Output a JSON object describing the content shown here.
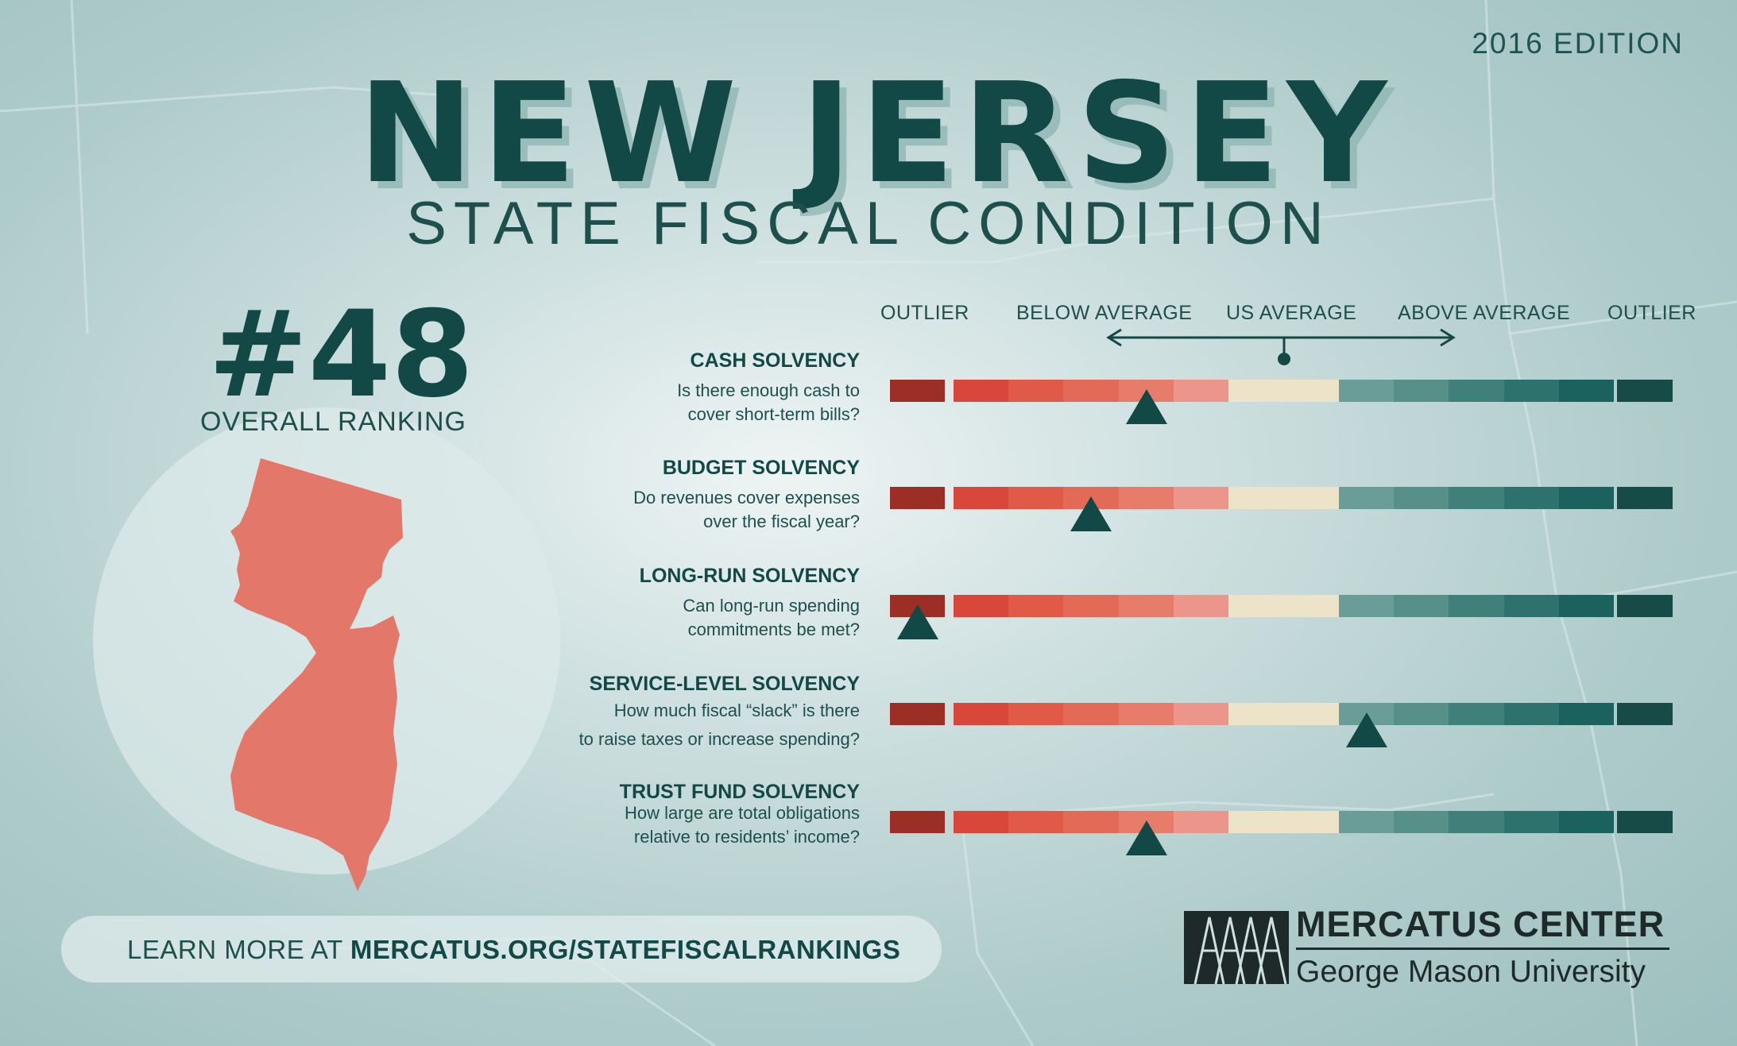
{
  "edition": "2016 EDITION",
  "title": "NEW JERSEY",
  "subtitle": "STATE FISCAL CONDITION",
  "ranking": {
    "value": "#48",
    "label": "OVERALL RANKING"
  },
  "scale": {
    "labels": [
      "OUTLIER",
      "BELOW AVERAGE",
      "US AVERAGE",
      "ABOVE AVERAGE",
      "OUTLIER"
    ],
    "segment_colors": [
      "#9b2f25",
      "#d9473a",
      "#e05a47",
      "#e46a58",
      "#e87c6b",
      "#ec958a",
      "#ece3c8",
      "#ece3c8",
      "#6a9c98",
      "#569089",
      "#3f807b",
      "#2e726d",
      "#1b615d",
      "#164b48"
    ]
  },
  "rows": [
    {
      "title": "CASH SOLVENCY",
      "question": [
        "Is there enough cash to",
        "cover short-term bills?"
      ],
      "marker_segment": 4
    },
    {
      "title": "BUDGET SOLVENCY",
      "question": [
        "Do revenues cover expenses",
        "over the fiscal year?"
      ],
      "marker_segment": 3
    },
    {
      "title": "LONG-RUN SOLVENCY",
      "question": [
        "Can long-run spending",
        "commitments be met?"
      ],
      "marker_segment": 0
    },
    {
      "title": "SERVICE-LEVEL SOLVENCY",
      "question": [
        "How much fiscal “slack” is there",
        "to raise taxes or increase spending?"
      ],
      "marker_segment": 8
    },
    {
      "title": "TRUST FUND SOLVENCY",
      "question": [
        "How large are total obligations",
        "relative to residents’ income?"
      ],
      "marker_segment": 4
    }
  ],
  "footer": {
    "learn_prefix": "LEARN MORE AT ",
    "learn_url": "MERCATUS.ORG/STATEFISCALRANKINGS"
  },
  "logo": {
    "name": "MERCATUS CENTER",
    "sub": "George Mason University"
  }
}
